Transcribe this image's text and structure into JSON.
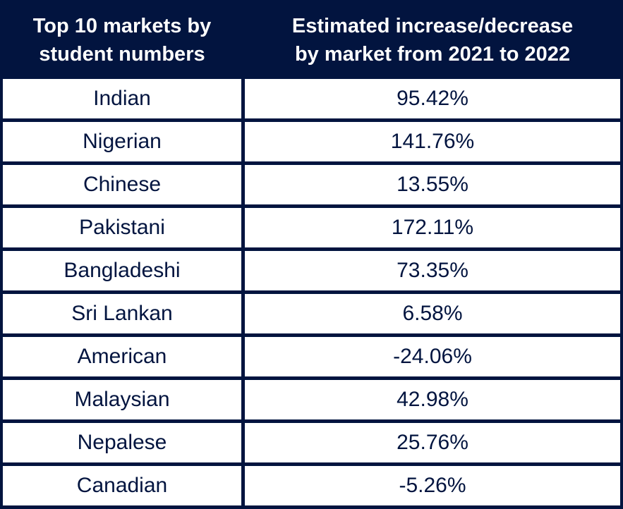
{
  "chart_data": {
    "type": "table",
    "columns": [
      "Top 10 markets by student numbers",
      "Estimated increase/decrease by market from 2021 to 2022"
    ],
    "header_lines": [
      [
        "Top 10 markets by",
        "student numbers"
      ],
      [
        "Estimated increase/decrease",
        "by market from 2021 to 2022"
      ]
    ],
    "rows": [
      [
        "Indian",
        "95.42%"
      ],
      [
        "Nigerian",
        "141.76%"
      ],
      [
        "Chinese",
        "13.55%"
      ],
      [
        "Pakistani",
        "172.11%"
      ],
      [
        "Bangladeshi",
        "73.35%"
      ],
      [
        "Sri Lankan",
        "6.58%"
      ],
      [
        "American",
        "-24.06%"
      ],
      [
        "Malaysian",
        "42.98%"
      ],
      [
        "Nepalese",
        "25.76%"
      ],
      [
        "Canadian",
        "-5.26%"
      ]
    ],
    "values": [
      95.42,
      141.76,
      13.55,
      172.11,
      73.35,
      6.58,
      -24.06,
      42.98,
      25.76,
      -5.26
    ]
  },
  "colors": {
    "header_bg": "#02143f",
    "text": "#02143f",
    "cell_bg": "#ffffff"
  }
}
